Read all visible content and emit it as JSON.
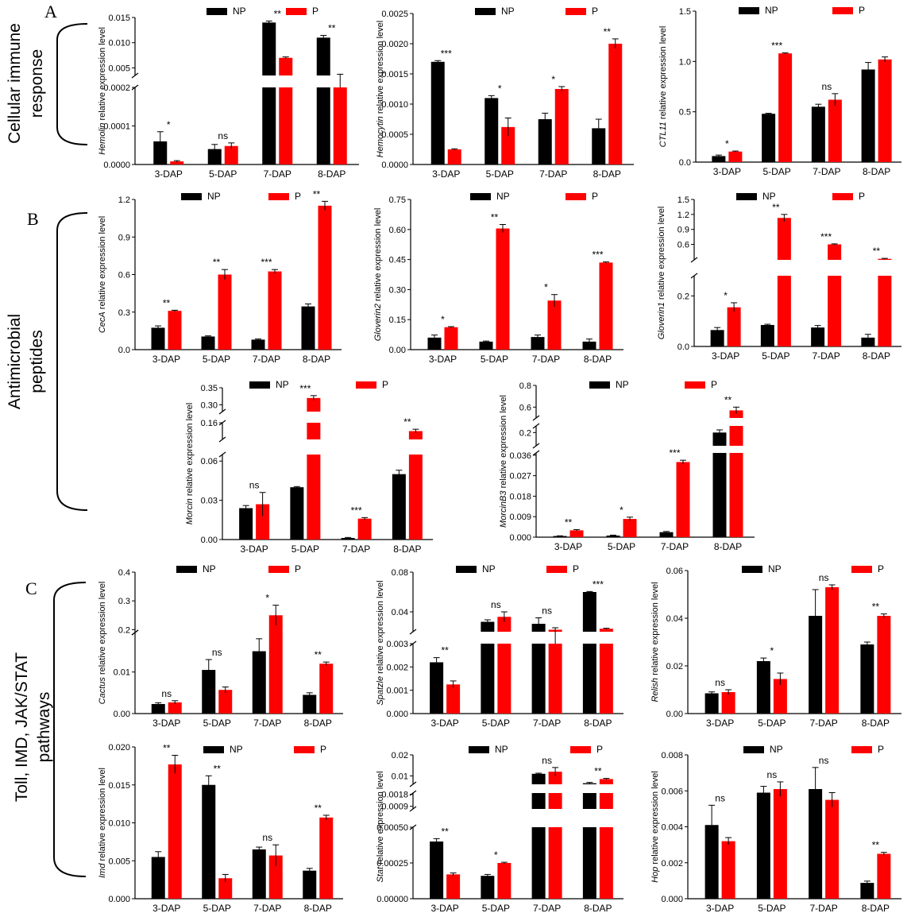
{
  "panel_letters": [
    "A",
    "B",
    "C"
  ],
  "group_labels": {
    "cellular": [
      "Cellular immune",
      "response"
    ],
    "antimicrobial": [
      "Antimicrobial",
      "peptides"
    ],
    "pathways": [
      "Toll, IMD, JAK/STAT",
      "pathways"
    ]
  },
  "colors": {
    "np": "#000000",
    "p": "#ff0000"
  },
  "legend": [
    "NP",
    "P"
  ],
  "categories": [
    "3-DAP",
    "5-DAP",
    "7-DAP",
    "8-DAP"
  ],
  "chart_data": [
    {
      "type": "bar",
      "gene": "Hemolin",
      "ylabel_suffix": " relative expression level",
      "series": [
        {
          "name": "NP",
          "values": [
            6e-05,
            4e-05,
            0.014,
            0.011
          ]
        },
        {
          "name": "P",
          "values": [
            8e-06,
            4.8e-05,
            0.007,
            0.0035
          ]
        }
      ],
      "errors": [
        [
          2.5e-05,
          1.2e-05,
          0.0003,
          0.00045
        ],
        [
          2e-06,
          8e-06,
          0.00018,
          0.00025
        ]
      ],
      "significance": [
        "*",
        "ns",
        "**",
        "**"
      ],
      "segments": [
        {
          "min": 0,
          "max": 0.0002,
          "ticks": [
            0.0,
            0.0001,
            0.0002
          ]
        },
        {
          "min": 0.0035,
          "max": 0.015,
          "ticks": [
            0.005,
            0.01,
            0.015
          ]
        }
      ],
      "tick_labels": [
        "0.0000",
        "0.0001",
        "0.0002",
        "0.005",
        "0.010",
        "0.015"
      ]
    },
    {
      "type": "bar",
      "gene": "Hemocytin",
      "ylabel_suffix": " relative expression level",
      "series": [
        {
          "name": "NP",
          "values": [
            0.0017,
            0.0011,
            0.00075,
            0.0006
          ]
        },
        {
          "name": "P",
          "values": [
            0.00025,
            0.00062,
            0.00125,
            0.002
          ]
        }
      ],
      "errors": [
        [
          2e-05,
          4e-05,
          0.0001,
          0.00015
        ],
        [
          1e-05,
          0.00015,
          4e-05,
          8e-05
        ]
      ],
      "significance": [
        "***",
        "*",
        "*",
        "**"
      ],
      "segments": [
        {
          "min": 0,
          "max": 0.0025,
          "ticks": [
            0,
            0.0005,
            0.001,
            0.0015,
            0.002,
            0.0025
          ]
        }
      ],
      "tick_labels": [
        "0.0000",
        "0.0005",
        "0.0010",
        "0.0015",
        "0.0020",
        "0.0025"
      ]
    },
    {
      "type": "bar",
      "gene": "CTL11",
      "ylabel_suffix": " relative expression level",
      "series": [
        {
          "name": "NP",
          "values": [
            0.06,
            0.48,
            0.55,
            0.92
          ]
        },
        {
          "name": "P",
          "values": [
            0.105,
            1.08,
            0.62,
            1.02
          ]
        }
      ],
      "errors": [
        [
          0.01,
          0.005,
          0.025,
          0.07
        ],
        [
          0.005,
          0.005,
          0.06,
          0.025
        ]
      ],
      "significance": [
        "*",
        "***",
        "ns",
        ""
      ],
      "segments": [
        {
          "min": 0,
          "max": 1.5,
          "ticks": [
            0,
            0.5,
            1.0,
            1.5
          ]
        }
      ],
      "tick_labels": [
        "0.0",
        "0.5",
        "1.0",
        "1.5"
      ]
    },
    {
      "type": "bar",
      "gene": "CecA",
      "ylabel_suffix": " relative expression level",
      "series": [
        {
          "name": "NP",
          "values": [
            0.175,
            0.105,
            0.08,
            0.345
          ]
        },
        {
          "name": "P",
          "values": [
            0.31,
            0.6,
            0.625,
            1.15
          ]
        }
      ],
      "errors": [
        [
          0.015,
          0.005,
          0.005,
          0.02
        ],
        [
          0.005,
          0.04,
          0.015,
          0.035
        ]
      ],
      "significance": [
        "**",
        "**",
        "***",
        "**"
      ],
      "segments": [
        {
          "min": 0,
          "max": 1.2,
          "ticks": [
            0,
            0.3,
            0.6,
            0.9,
            1.2
          ]
        }
      ],
      "tick_labels": [
        "0.0",
        "0.3",
        "0.6",
        "0.9",
        "1.2"
      ]
    },
    {
      "type": "bar",
      "gene": "Gloverin2",
      "ylabel_suffix": " relative expression level",
      "series": [
        {
          "name": "NP",
          "values": [
            0.06,
            0.04,
            0.063,
            0.04
          ]
        },
        {
          "name": "P",
          "values": [
            0.112,
            0.605,
            0.245,
            0.435
          ]
        }
      ],
      "errors": [
        [
          0.013,
          0.003,
          0.01,
          0.013
        ],
        [
          0.003,
          0.02,
          0.03,
          0.003
        ]
      ],
      "significance": [
        "*",
        "**",
        "*",
        "***"
      ],
      "segments": [
        {
          "min": 0,
          "max": 0.75,
          "ticks": [
            0,
            0.15,
            0.3,
            0.45,
            0.6,
            0.75
          ]
        }
      ],
      "tick_labels": [
        "0.00",
        "0.15",
        "0.30",
        "0.45",
        "0.60",
        "0.75"
      ]
    },
    {
      "type": "bar",
      "gene": "Gloverin1",
      "ylabel_suffix": " relative expression level",
      "series": [
        {
          "name": "NP",
          "values": [
            0.065,
            0.085,
            0.075,
            0.035
          ]
        },
        {
          "name": "P",
          "values": [
            0.155,
            1.13,
            0.6,
            0.31
          ]
        }
      ],
      "errors": [
        [
          0.01,
          0.003,
          0.008,
          0.013
        ],
        [
          0.018,
          0.07,
          0.01,
          0.01
        ]
      ],
      "significance": [
        "*",
        "**",
        "***",
        "**"
      ],
      "segments": [
        {
          "min": 0,
          "max": 0.28,
          "ticks": [
            0,
            0.2
          ]
        },
        {
          "min": 0.29,
          "max": 1.5,
          "ticks": [
            0.6,
            0.9,
            1.2,
            1.5
          ]
        }
      ],
      "tick_labels": [
        "0.0",
        "0.2",
        "0.6",
        "0.9",
        "1.2",
        "1.5"
      ]
    },
    {
      "type": "bar",
      "gene": "Morcin",
      "ylabel_suffix": " relative expression level",
      "series": [
        {
          "name": "NP",
          "values": [
            0.024,
            0.04,
            0.0012,
            0.05
          ]
        },
        {
          "name": "P",
          "values": [
            0.027,
            0.32,
            0.016,
            0.115
          ]
        }
      ],
      "errors": [
        [
          0.002,
          0.0005,
          0.0004,
          0.003
        ],
        [
          0.009,
          0.007,
          0.0008,
          0.01
        ]
      ],
      "significance": [
        "ns",
        "***",
        "***",
        "**"
      ],
      "segments": [
        {
          "min": 0,
          "max": 0.065,
          "ticks": [
            0,
            0.03,
            0.06
          ]
        },
        {
          "min": 0.07,
          "max": 0.16,
          "ticks": [
            0.16
          ]
        },
        {
          "min": 0.28,
          "max": 0.35,
          "ticks": [
            0.3,
            0.35
          ]
        }
      ],
      "tick_labels": [
        "0.00",
        "0.03",
        "0.06",
        "0.16",
        "0.30",
        "0.35"
      ]
    },
    {
      "type": "bar",
      "gene": "MorcinB3",
      "ylabel_suffix": " relative expression level",
      "series": [
        {
          "name": "NP",
          "values": [
            0.0005,
            0.0007,
            0.0022,
            0.2
          ]
        },
        {
          "name": "P",
          "values": [
            0.003,
            0.008,
            0.033,
            0.57
          ]
        }
      ],
      "errors": [
        [
          0.0001,
          0.0002,
          0.0003,
          0.02
        ],
        [
          0.0003,
          0.0008,
          0.0008,
          0.03
        ]
      ],
      "significance": [
        "**",
        "*",
        "***",
        "**"
      ],
      "segments": [
        {
          "min": 0,
          "max": 0.037,
          "ticks": [
            0,
            0.009,
            0.018,
            0.027,
            0.036
          ]
        },
        {
          "min": 0.1,
          "max": 0.25,
          "ticks": [
            0.2
          ]
        },
        {
          "min": 0.5,
          "max": 0.8,
          "ticks": [
            0.6,
            0.8
          ]
        }
      ],
      "tick_labels": [
        "0.000",
        "0.009",
        "0.018",
        "0.027",
        "0.036",
        "0.2",
        "0.6",
        "0.8"
      ]
    },
    {
      "type": "bar",
      "gene": "Cactus",
      "ylabel_suffix": " relative expression level",
      "series": [
        {
          "name": "NP",
          "values": [
            0.0023,
            0.0105,
            0.015,
            0.0045
          ]
        },
        {
          "name": "P",
          "values": [
            0.0027,
            0.0057,
            0.25,
            0.012
          ]
        }
      ],
      "errors": [
        [
          0.0003,
          0.0025,
          0.003,
          0.0005
        ],
        [
          0.0004,
          0.0007,
          0.035,
          0.0004
        ]
      ],
      "significance": [
        "ns",
        "ns",
        "*",
        "**"
      ],
      "segments": [
        {
          "min": 0,
          "max": 0.0195,
          "ticks": [
            0,
            0.01
          ]
        },
        {
          "min": 0.19,
          "max": 0.4,
          "ticks": [
            0.2,
            0.3,
            0.4
          ]
        }
      ],
      "tick_labels": [
        "0.00",
        "0.01",
        "0.2",
        "0.3",
        "0.4"
      ]
    },
    {
      "type": "bar",
      "gene": "Spatzle",
      "ylabel_suffix": " relative expression level",
      "series": [
        {
          "name": "NP",
          "values": [
            0.0022,
            0.03,
            0.028,
            0.06
          ]
        },
        {
          "name": "P",
          "values": [
            0.00125,
            0.035,
            0.022,
            0.023
          ]
        }
      ],
      "errors": [
        [
          0.0002,
          0.002,
          0.006,
          0.0005
        ],
        [
          0.00015,
          0.005,
          0.002,
          0.0005
        ]
      ],
      "significance": [
        "**",
        "ns",
        "ns",
        "***"
      ],
      "segments": [
        {
          "min": 0,
          "max": 0.003,
          "ticks": [
            0,
            0.001,
            0.002,
            0.003
          ]
        },
        {
          "min": 0.02,
          "max": 0.08,
          "ticks": [
            0.04,
            0.08
          ]
        }
      ],
      "tick_labels": [
        "0.000",
        "0.001",
        "0.002",
        "0.003",
        "0.04",
        "0.08"
      ]
    },
    {
      "type": "bar",
      "gene": "Relish",
      "ylabel_suffix": " relative expression level",
      "series": [
        {
          "name": "NP",
          "values": [
            0.0085,
            0.022,
            0.041,
            0.029
          ]
        },
        {
          "name": "P",
          "values": [
            0.009,
            0.0145,
            0.053,
            0.041
          ]
        }
      ],
      "errors": [
        [
          0.0006,
          0.0013,
          0.011,
          0.001
        ],
        [
          0.001,
          0.0025,
          0.001,
          0.0008
        ]
      ],
      "significance": [
        "ns",
        "*",
        "ns",
        "**"
      ],
      "segments": [
        {
          "min": 0,
          "max": 0.06,
          "ticks": [
            0,
            0.02,
            0.04,
            0.06
          ]
        }
      ],
      "tick_labels": [
        "0.00",
        "0.02",
        "0.04",
        "0.06"
      ]
    },
    {
      "type": "bar",
      "gene": "Imd",
      "ylabel_suffix": " relative expression level",
      "series": [
        {
          "name": "NP",
          "values": [
            0.0055,
            0.015,
            0.0065,
            0.0037
          ]
        },
        {
          "name": "P",
          "values": [
            0.0177,
            0.0027,
            0.0057,
            0.0107
          ]
        }
      ],
      "errors": [
        [
          0.0007,
          0.0012,
          0.0003,
          0.0003
        ],
        [
          0.0012,
          0.0005,
          0.0014,
          0.0003
        ]
      ],
      "significance": [
        "**",
        "**",
        "ns",
        "**"
      ],
      "segments": [
        {
          "min": 0,
          "max": 0.02,
          "ticks": [
            0,
            0.005,
            0.01,
            0.015,
            0.02
          ]
        }
      ],
      "tick_labels": [
        "0.000",
        "0.005",
        "0.010",
        "0.015",
        "0.020"
      ]
    },
    {
      "type": "bar",
      "gene": "Stat",
      "ylabel_suffix": " relative expression level",
      "series": [
        {
          "name": "NP",
          "values": [
            0.0004,
            0.00016,
            0.011,
            0.0065
          ]
        },
        {
          "name": "P",
          "values": [
            0.00017,
            0.00025,
            0.012,
            0.0085
          ]
        }
      ],
      "errors": [
        [
          2e-05,
          1e-05,
          0.0003,
          0.0004
        ],
        [
          1e-05,
          5e-06,
          0.002,
          0.0003
        ]
      ],
      "significance": [
        "**",
        "*",
        "ns",
        "**"
      ],
      "segments": [
        {
          "min": 0,
          "max": 0.0005,
          "ticks": [
            0,
            0.00025,
            0.0005
          ]
        },
        {
          "min": 0.0007,
          "max": 0.0019,
          "ticks": [
            0.0009,
            0.0018
          ]
        },
        {
          "min": 0.006,
          "max": 0.02,
          "ticks": [
            0.01,
            0.02
          ]
        }
      ],
      "tick_labels": [
        "0.00000",
        "0.00025",
        "0.00050",
        "0.0009",
        "0.0018",
        "0.01",
        "0.02"
      ]
    },
    {
      "type": "bar",
      "gene": "Hop",
      "ylabel_suffix": " relative expression level",
      "series": [
        {
          "name": "NP",
          "values": [
            0.0041,
            0.0059,
            0.0061,
            0.00088
          ]
        },
        {
          "name": "P",
          "values": [
            0.0032,
            0.0061,
            0.0055,
            0.0025
          ]
        }
      ],
      "errors": [
        [
          0.0011,
          0.00035,
          0.0012,
          0.0001
        ],
        [
          0.0002,
          0.0004,
          0.0004,
          8e-05
        ]
      ],
      "significance": [
        "ns",
        "ns",
        "ns",
        "**"
      ],
      "segments": [
        {
          "min": 0,
          "max": 0.008,
          "ticks": [
            0,
            0.002,
            0.004,
            0.006,
            0.008
          ]
        }
      ],
      "tick_labels": [
        "0.000",
        "0.002",
        "0.004",
        "0.006",
        "0.008"
      ]
    }
  ]
}
